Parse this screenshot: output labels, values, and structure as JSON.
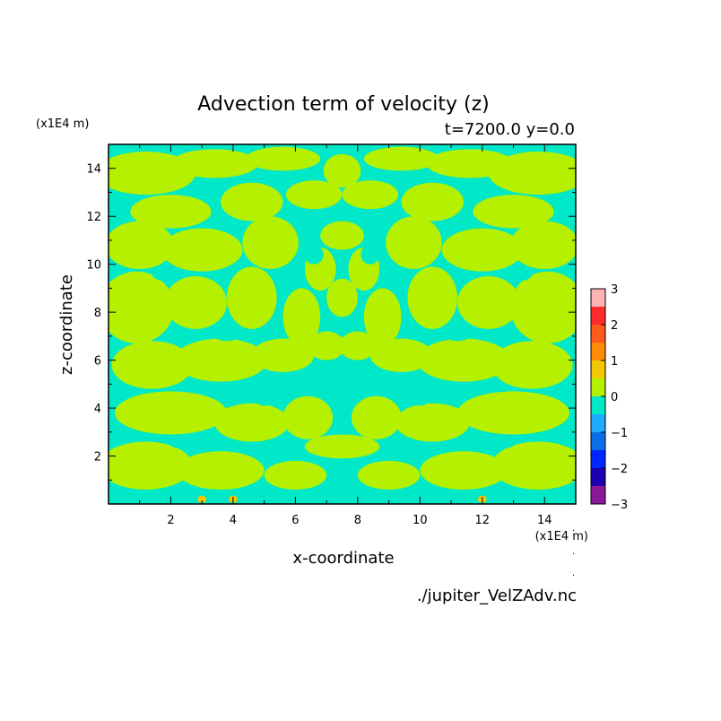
{
  "chart_data": {
    "type": "heatmap",
    "title": "Advection term of velocity (z)",
    "subtitle": "t=7200.0 y=0.0",
    "xlabel": "x-coordinate",
    "ylabel": "z-coordinate",
    "x_unit": "(x1E4 m)",
    "y_unit": "(x1E4 m)",
    "xlim": [
      0,
      15
    ],
    "ylim": [
      0,
      15
    ],
    "x_ticks": [
      2,
      4,
      6,
      8,
      10,
      12,
      14
    ],
    "y_ticks": [
      2,
      4,
      6,
      8,
      10,
      12,
      14
    ],
    "colorbar": {
      "levels": [
        -3,
        -2.5,
        -2,
        -1.5,
        -1,
        -0.5,
        0,
        0.5,
        1,
        1.5,
        2,
        2.5,
        3
      ],
      "tick_labels": [
        "3",
        "2",
        "1",
        "0",
        "−1",
        "−2",
        "−3"
      ],
      "colors": [
        "#8b1a9a",
        "#1c00b0",
        "#0026ff",
        "#0a6ee8",
        "#1eaaff",
        "#00e8c8",
        "#b4f000",
        "#f2c800",
        "#ff8c00",
        "#ff5a1e",
        "#ff2b2b",
        "#ffb4b4"
      ]
    },
    "dominant_colors": {
      "positive_small": "#b4f000",
      "negative_small": "#00e8c8",
      "accent": "#f2c800"
    }
  },
  "footer": {
    "filename": "./jupiter_VelZAdv.nc"
  }
}
